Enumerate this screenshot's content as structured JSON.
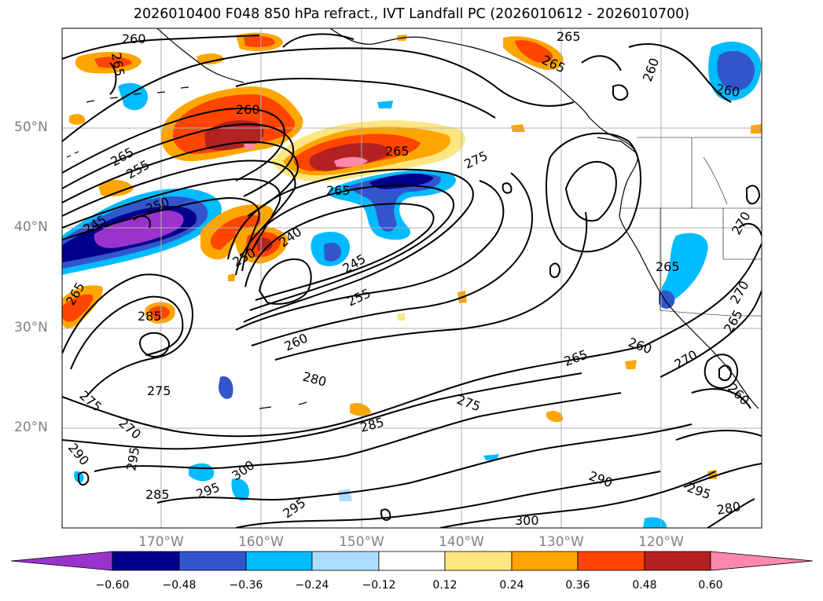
{
  "title": "2026010400 F048 850 hPa refract., IVT Landfall PC (2026010612 - 2026010700)",
  "lat_labels": [
    "50°N",
    "40°N",
    "30°N",
    "20°N"
  ],
  "lon_labels": [
    "170°W",
    "160°W",
    "150°W",
    "140°W",
    "130°W",
    "120°W"
  ],
  "colorbar": {
    "ticks": [
      "−0.60",
      "−0.48",
      "−0.36",
      "−0.24",
      "−0.12",
      "0.12",
      "0.24",
      "0.36",
      "0.48",
      "0.60"
    ],
    "colors": [
      "#9933cc",
      "#00008b",
      "#3355cc",
      "#00bbff",
      "#aaddff",
      "#ffffff",
      "#ffe680",
      "#ffa500",
      "#ff4500",
      "#b22222",
      "#ff88aa",
      "#ff88aa"
    ]
  },
  "contour_labels": [
    "260",
    "265",
    "265",
    "265",
    "260",
    "265",
    "260",
    "260",
    "255",
    "265",
    "275",
    "265",
    "250",
    "245",
    "240",
    "250",
    "245",
    "255",
    "260",
    "265",
    "285",
    "275",
    "280",
    "275",
    "285",
    "260",
    "270",
    "265",
    "270",
    "270",
    "260",
    "290",
    "295",
    "285",
    "295",
    "300",
    "295",
    "300",
    "290",
    "295",
    "280",
    "265",
    "275",
    "270",
    "265"
  ],
  "colors": {
    "coast": "#000000",
    "grid": "#b0b0b0",
    "axis_label": "#808080"
  }
}
